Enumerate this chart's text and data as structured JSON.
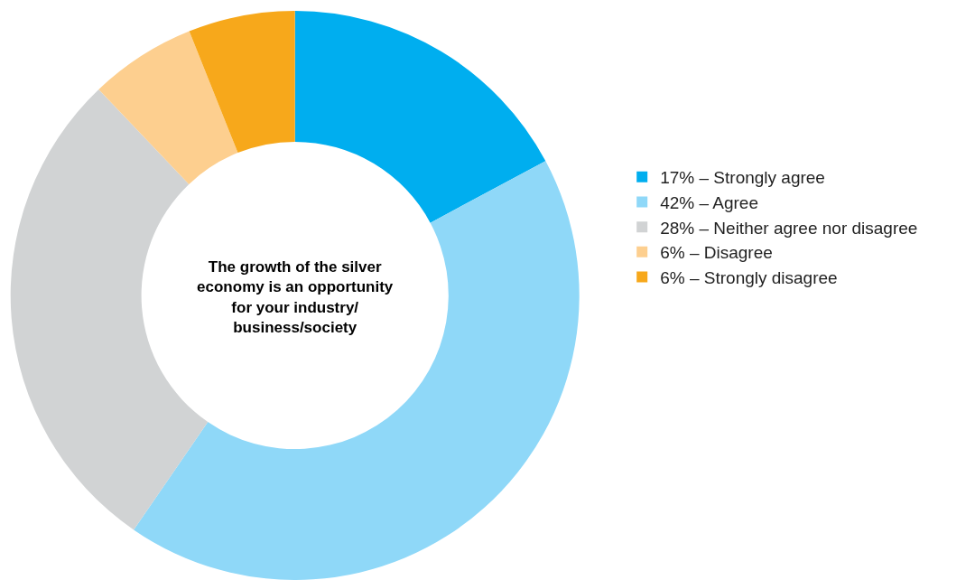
{
  "chart_data": {
    "type": "donut",
    "title": "The growth of the silver\neconomy is an opportunity\nfor your industry/\nbusiness/society",
    "categories": [
      "17% – Strongly agree",
      "42% – Agree",
      "28% – Neither agree nor disagree",
      "6% – Disagree",
      "6% – Strongly disagree"
    ],
    "values": [
      17,
      42,
      28,
      6,
      6
    ],
    "colors": [
      "#00aeef",
      "#8fd8f8",
      "#d1d3d4",
      "#fdcf8f",
      "#f7a81b"
    ],
    "legend": "right"
  }
}
